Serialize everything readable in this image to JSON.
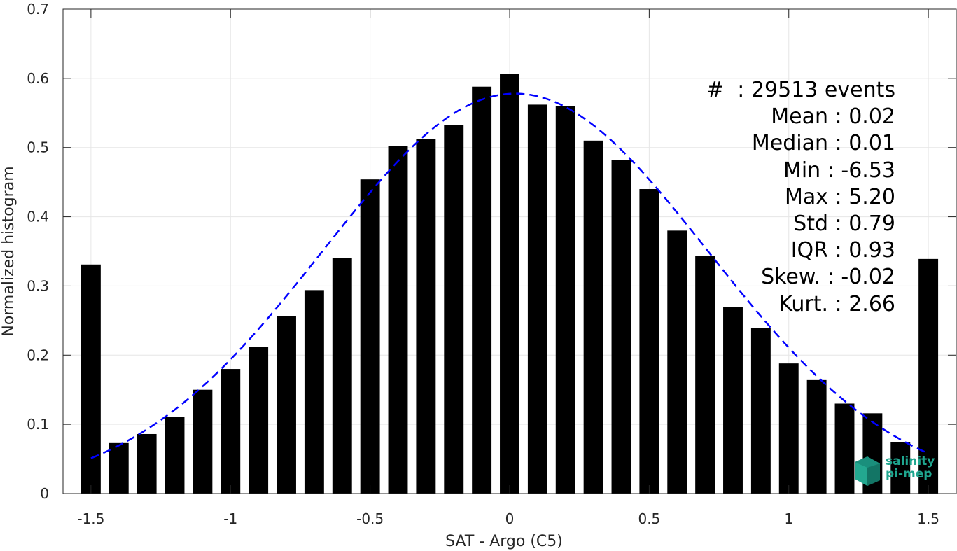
{
  "chart_data": {
    "type": "bar",
    "xlabel": "SAT - Argo (C5)",
    "ylabel": "Normalized histogram",
    "xlim": [
      -1.6,
      1.6
    ],
    "ylim": [
      0,
      0.7
    ],
    "xticks": [
      -1.5,
      -1,
      -0.5,
      0,
      0.5,
      1,
      1.5
    ],
    "xtick_labels": [
      "-1.5",
      "-1",
      "-0.5",
      "0",
      "0.5",
      "1",
      "1.5"
    ],
    "yticks": [
      0,
      0.1,
      0.2,
      0.3,
      0.4,
      0.5,
      0.6,
      0.7
    ],
    "ytick_labels": [
      "0",
      "0.1",
      "0.2",
      "0.3",
      "0.4",
      "0.5",
      "0.6",
      "0.7"
    ],
    "grid": true,
    "bar_width": 0.07,
    "x": [
      -1.5,
      -1.4,
      -1.3,
      -1.2,
      -1.1,
      -1.0,
      -0.9,
      -0.8,
      -0.7,
      -0.6,
      -0.5,
      -0.4,
      -0.3,
      -0.2,
      -0.1,
      0.0,
      0.1,
      0.2,
      0.3,
      0.4,
      0.5,
      0.6,
      0.7,
      0.8,
      0.9,
      1.0,
      1.1,
      1.2,
      1.3,
      1.4,
      1.5
    ],
    "values": [
      0.331,
      0.073,
      0.086,
      0.111,
      0.15,
      0.18,
      0.212,
      0.256,
      0.294,
      0.34,
      0.454,
      0.502,
      0.512,
      0.533,
      0.588,
      0.606,
      0.562,
      0.56,
      0.51,
      0.482,
      0.44,
      0.38,
      0.343,
      0.27,
      0.239,
      0.188,
      0.164,
      0.13,
      0.116,
      0.074,
      0.339
    ],
    "fit_curve": {
      "style": "dashed",
      "color": "#0000ff",
      "mean": 0.02,
      "std": 0.69,
      "peak": 0.578,
      "x_range": [
        -1.5,
        1.5
      ]
    },
    "bar_color": "#000000",
    "stats": [
      "#  : 29513 events",
      "Mean : 0.02",
      "Median : 0.01",
      "Min : -6.53",
      "Max : 5.20",
      "Std : 0.79",
      "IQR : 0.93",
      "Skew. : -0.02",
      "Kurt. : 2.66"
    ]
  },
  "logo": {
    "line1": "salinity",
    "line2": "pi-mep",
    "color": "#1fa68f"
  }
}
